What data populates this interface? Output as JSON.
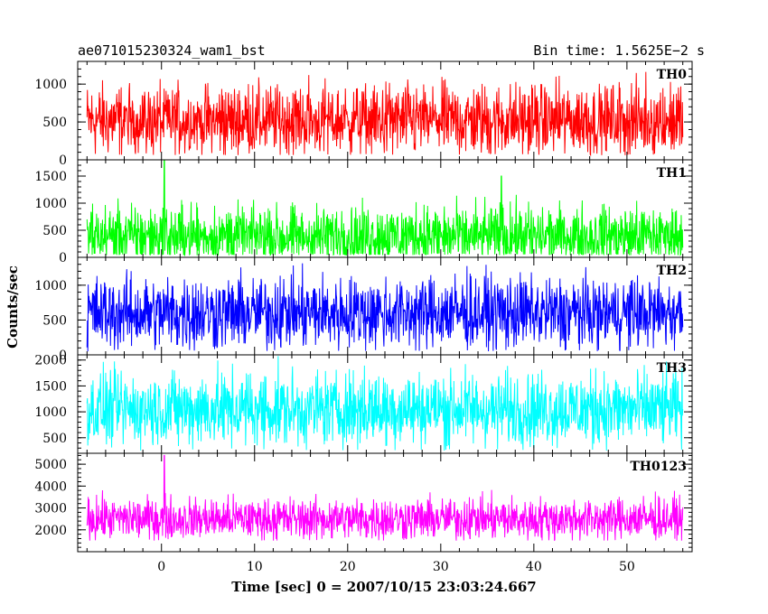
{
  "header": {
    "left": "ae071015230324_wam1_bst",
    "right": "Bin time: 1.5625E−2 s"
  },
  "chart_data": {
    "type": "line",
    "xlabel": "Time [sec] 0 = 2007/10/15 23:03:24.667",
    "ylabel": "Counts/sec",
    "xlim": [
      -9,
      57
    ],
    "x_start": -8,
    "x_end": 56,
    "x_ticks": [
      0,
      10,
      20,
      30,
      40,
      50
    ],
    "x_tick_labels": [
      "0",
      "10",
      "20",
      "30",
      "40",
      "50"
    ],
    "panels": [
      {
        "name": "TH0",
        "color": "#ff0000",
        "ylim": [
          0,
          1300
        ],
        "yticks": [
          0,
          500,
          1000
        ],
        "ytick_labels": [
          "0",
          "500",
          "1000"
        ],
        "mean": 520,
        "range": [
          60,
          1300
        ],
        "spikes": []
      },
      {
        "name": "TH1",
        "color": "#00ff00",
        "ylim": [
          0,
          1800
        ],
        "yticks": [
          0,
          500,
          1000,
          1500
        ],
        "ytick_labels": [
          "0",
          "500",
          "1000",
          "1500"
        ],
        "mean": 390,
        "range": [
          40,
          1500
        ],
        "spikes": [
          {
            "x": 0.3,
            "y": 1800
          },
          {
            "x": 36.5,
            "y": 1500
          }
        ]
      },
      {
        "name": "TH2",
        "color": "#0000ff",
        "ylim": [
          0,
          1400
        ],
        "yticks": [
          0,
          500,
          1000
        ],
        "ytick_labels": [
          "0",
          "500",
          "1000"
        ],
        "mean": 600,
        "range": [
          50,
          1400
        ],
        "spikes": []
      },
      {
        "name": "TH3",
        "color": "#00ffff",
        "ylim": [
          200,
          2100
        ],
        "yticks": [
          500,
          1000,
          1500,
          2000
        ],
        "ytick_labels": [
          "500",
          "1000",
          "1500",
          "2000"
        ],
        "mean": 1050,
        "range": [
          250,
          2100
        ],
        "spikes": []
      },
      {
        "name": "TH0123",
        "color": "#ff00ff",
        "ylim": [
          1000,
          5500
        ],
        "yticks": [
          2000,
          3000,
          4000,
          5000
        ],
        "ytick_labels": [
          "2000",
          "3000",
          "4000",
          "5000"
        ],
        "mean": 2500,
        "range": [
          1500,
          4000
        ],
        "spikes": [
          {
            "x": 0.3,
            "y": 5400
          }
        ]
      }
    ]
  }
}
